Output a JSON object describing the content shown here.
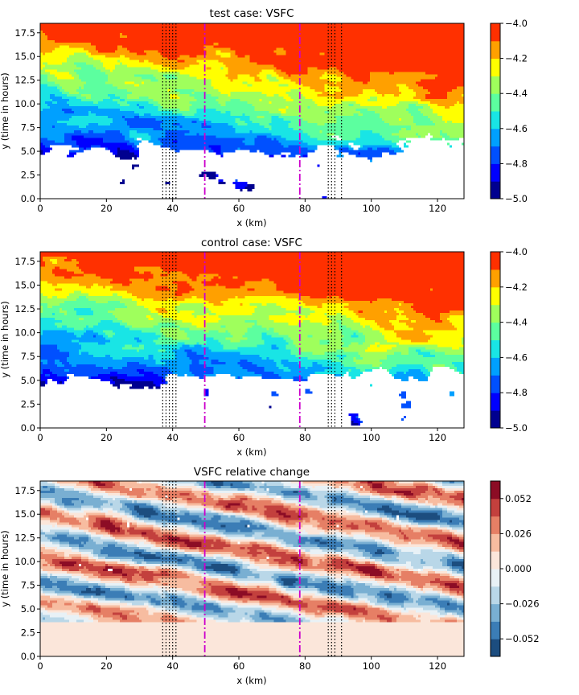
{
  "chart_data": [
    {
      "type": "heatmap",
      "title": "test case: VSFC",
      "xlabel": "x (km)",
      "ylabel": "y (time in hours)",
      "xlim": [
        0,
        128
      ],
      "ylim": [
        0,
        18.5
      ],
      "xticks": [
        "0",
        "20",
        "40",
        "60",
        "80",
        "100",
        "120"
      ],
      "yticks": [
        "0.0",
        "2.5",
        "5.0",
        "7.5",
        "10.0",
        "12.5",
        "15.0",
        "17.5"
      ],
      "colormap": "jet",
      "colorbar": {
        "range": [
          -5.0,
          -4.0
        ],
        "levels": 10,
        "ticks": [
          -4.0,
          -4.2,
          -4.4,
          -4.6,
          -4.8,
          -5.0
        ],
        "ticklabels": [
          "−4.0",
          "−4.2",
          "−4.4",
          "−4.6",
          "−4.8",
          "−5.0"
        ]
      },
      "vlines": [
        {
          "x": [
            37,
            38,
            39,
            40,
            41
          ],
          "style": "dotted",
          "color": "#000000"
        },
        {
          "x": [
            49.7,
            78.4
          ],
          "style": "dashdot",
          "color": "#cc00cc"
        },
        {
          "x": [
            87,
            88,
            89,
            91
          ],
          "style": "dotted",
          "color": "#000000"
        }
      ]
    },
    {
      "type": "heatmap",
      "title": "control case: VSFC",
      "xlabel": "x (km)",
      "ylabel": "y (time in hours)",
      "xlim": [
        0,
        128
      ],
      "ylim": [
        0,
        18.5
      ],
      "xticks": [
        "0",
        "20",
        "40",
        "60",
        "80",
        "100",
        "120"
      ],
      "yticks": [
        "0.0",
        "2.5",
        "5.0",
        "7.5",
        "10.0",
        "12.5",
        "15.0",
        "17.5"
      ],
      "colormap": "jet",
      "colorbar": {
        "range": [
          -5.0,
          -4.0
        ],
        "levels": 10,
        "ticks": [
          -4.0,
          -4.2,
          -4.4,
          -4.6,
          -4.8,
          -5.0
        ],
        "ticklabels": [
          "−4.0",
          "−4.2",
          "−4.4",
          "−4.6",
          "−4.8",
          "−5.0"
        ]
      },
      "vlines": [
        {
          "x": [
            37,
            38,
            39,
            40,
            41
          ],
          "style": "dotted",
          "color": "#000000"
        },
        {
          "x": [
            49.7,
            78.4
          ],
          "style": "dashdot",
          "color": "#cc00cc"
        },
        {
          "x": [
            87,
            88,
            89,
            91
          ],
          "style": "dotted",
          "color": "#000000"
        }
      ]
    },
    {
      "type": "heatmap",
      "title": "VSFC relative change",
      "xlabel": "x (km)",
      "ylabel": "y (time in hours)",
      "xlim": [
        0,
        128
      ],
      "ylim": [
        0,
        18.5
      ],
      "xticks": [
        "0",
        "20",
        "40",
        "60",
        "80",
        "100",
        "120"
      ],
      "yticks": [
        "0.0",
        "2.5",
        "5.0",
        "7.5",
        "10.0",
        "12.5",
        "15.0",
        "17.5"
      ],
      "colormap": "RdBu_r",
      "colorbar": {
        "range": [
          -0.065,
          0.065
        ],
        "levels": 10,
        "ticks": [
          0.052,
          0.026,
          0.0,
          -0.026,
          -0.052
        ],
        "ticklabels": [
          "0.052",
          "0.026",
          "0.000",
          "−0.026",
          "−0.052"
        ]
      },
      "vlines": [
        {
          "x": [
            37,
            38,
            39,
            40,
            41
          ],
          "style": "dotted",
          "color": "#000000"
        },
        {
          "x": [
            49.7,
            78.4
          ],
          "style": "dashdot",
          "color": "#cc00cc"
        },
        {
          "x": [
            87,
            88,
            89,
            91
          ],
          "style": "dotted",
          "color": "#000000"
        }
      ]
    }
  ],
  "colors": {
    "jet": [
      "#00008f",
      "#0000ff",
      "#0050ff",
      "#00a0ff",
      "#19e5e5",
      "#5cff9f",
      "#9fff5c",
      "#ffff00",
      "#ffa000",
      "#ff3000",
      "#9f0000"
    ],
    "rdbu": [
      "#1c4d7f",
      "#3b7db6",
      "#79afd2",
      "#b9d7e8",
      "#e8f1f6",
      "#fbe6da",
      "#f7bca0",
      "#e67f65",
      "#c3403d",
      "#8c0c25"
    ]
  }
}
